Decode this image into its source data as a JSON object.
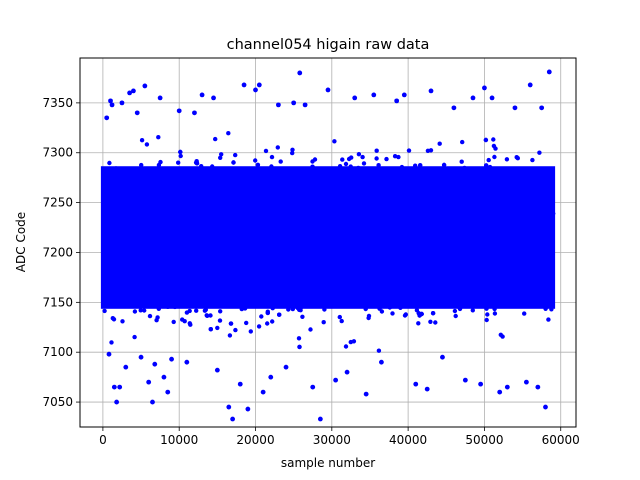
{
  "chart_data": {
    "type": "scatter",
    "title": "channel054 higain raw data",
    "xlabel": "sample number",
    "ylabel": "ADC Code",
    "xlim": [
      -3000,
      62000
    ],
    "ylim": [
      7025,
      7395
    ],
    "xticks": [
      0,
      10000,
      20000,
      30000,
      40000,
      50000,
      60000
    ],
    "yticks": [
      7050,
      7100,
      7150,
      7200,
      7250,
      7300,
      7350
    ],
    "grid": true,
    "marker_color": "#0000ff",
    "marker": "circle",
    "n_samples": 59000,
    "dense_band": {
      "x_range": [
        0,
        59000
      ],
      "y_range": [
        7130,
        7300
      ],
      "center": 7215
    },
    "outliers": [
      {
        "x": 500,
        "y": 7335
      },
      {
        "x": 800,
        "y": 7098
      },
      {
        "x": 1000,
        "y": 7352
      },
      {
        "x": 1200,
        "y": 7348
      },
      {
        "x": 1500,
        "y": 7065
      },
      {
        "x": 1800,
        "y": 7050
      },
      {
        "x": 2200,
        "y": 7065
      },
      {
        "x": 2500,
        "y": 7350
      },
      {
        "x": 3000,
        "y": 7085
      },
      {
        "x": 3500,
        "y": 7360
      },
      {
        "x": 4000,
        "y": 7362
      },
      {
        "x": 4500,
        "y": 7340
      },
      {
        "x": 5000,
        "y": 7095
      },
      {
        "x": 5500,
        "y": 7367
      },
      {
        "x": 6000,
        "y": 7070
      },
      {
        "x": 6500,
        "y": 7050
      },
      {
        "x": 6800,
        "y": 7088
      },
      {
        "x": 7500,
        "y": 7355
      },
      {
        "x": 8000,
        "y": 7075
      },
      {
        "x": 8500,
        "y": 7060
      },
      {
        "x": 9000,
        "y": 7093
      },
      {
        "x": 10000,
        "y": 7342
      },
      {
        "x": 11000,
        "y": 7090
      },
      {
        "x": 12000,
        "y": 7340
      },
      {
        "x": 13000,
        "y": 7358
      },
      {
        "x": 14500,
        "y": 7355
      },
      {
        "x": 15000,
        "y": 7082
      },
      {
        "x": 16500,
        "y": 7045
      },
      {
        "x": 17000,
        "y": 7033
      },
      {
        "x": 18000,
        "y": 7068
      },
      {
        "x": 18500,
        "y": 7368
      },
      {
        "x": 19000,
        "y": 7043
      },
      {
        "x": 20000,
        "y": 7363
      },
      {
        "x": 20500,
        "y": 7368
      },
      {
        "x": 21000,
        "y": 7060
      },
      {
        "x": 22000,
        "y": 7075
      },
      {
        "x": 23000,
        "y": 7348
      },
      {
        "x": 24000,
        "y": 7085
      },
      {
        "x": 25000,
        "y": 7350
      },
      {
        "x": 25800,
        "y": 7380
      },
      {
        "x": 26500,
        "y": 7348
      },
      {
        "x": 27500,
        "y": 7065
      },
      {
        "x": 28500,
        "y": 7033
      },
      {
        "x": 29500,
        "y": 7363
      },
      {
        "x": 30500,
        "y": 7072
      },
      {
        "x": 32000,
        "y": 7080
      },
      {
        "x": 33000,
        "y": 7355
      },
      {
        "x": 34500,
        "y": 7058
      },
      {
        "x": 35500,
        "y": 7358
      },
      {
        "x": 36500,
        "y": 7090
      },
      {
        "x": 38500,
        "y": 7352
      },
      {
        "x": 39500,
        "y": 7358
      },
      {
        "x": 41000,
        "y": 7068
      },
      {
        "x": 42500,
        "y": 7063
      },
      {
        "x": 43000,
        "y": 7362
      },
      {
        "x": 44500,
        "y": 7095
      },
      {
        "x": 46000,
        "y": 7345
      },
      {
        "x": 47500,
        "y": 7072
      },
      {
        "x": 48500,
        "y": 7355
      },
      {
        "x": 49500,
        "y": 7068
      },
      {
        "x": 50000,
        "y": 7365
      },
      {
        "x": 51000,
        "y": 7355
      },
      {
        "x": 52000,
        "y": 7060
      },
      {
        "x": 53000,
        "y": 7065
      },
      {
        "x": 54000,
        "y": 7345
      },
      {
        "x": 55500,
        "y": 7070
      },
      {
        "x": 56000,
        "y": 7368
      },
      {
        "x": 57000,
        "y": 7065
      },
      {
        "x": 57500,
        "y": 7345
      },
      {
        "x": 58000,
        "y": 7045
      },
      {
        "x": 58500,
        "y": 7381
      }
    ]
  }
}
